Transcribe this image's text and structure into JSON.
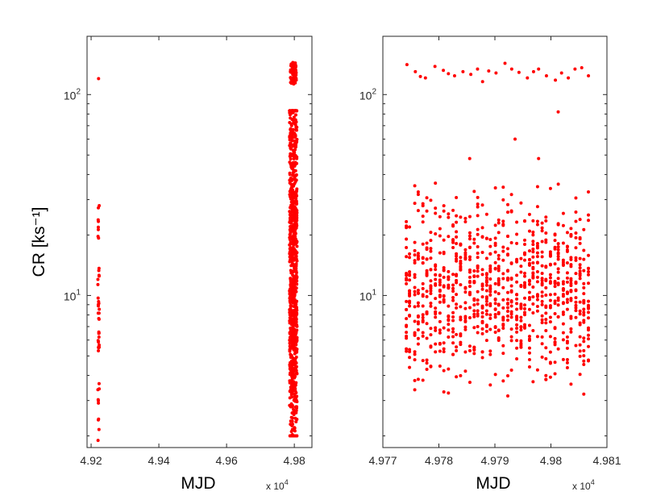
{
  "chart_data": [
    {
      "type": "scatter",
      "title": "",
      "xlabel": "MJD",
      "ylabel": "CR [ks⁻¹]",
      "x_multiplier_label": "x 10",
      "x_multiplier_exponent": "4",
      "xscale": "linear",
      "yscale": "log",
      "xlim": [
        4.9188,
        4.9852
      ],
      "ylim": [
        1.75,
        195
      ],
      "x_ticks": [
        4.92,
        4.94,
        4.96,
        4.98
      ],
      "x_tick_labels": [
        "4.92",
        "4.94",
        "4.96",
        "4.98"
      ],
      "y_tick_labels": [
        {
          "base": "10",
          "exp": "1"
        },
        {
          "base": "10",
          "exp": "2"
        }
      ],
      "color": "#ff0000",
      "marker": "filled-circle",
      "groups": [
        {
          "x_center": 4.9222,
          "x_jitter": 0.0002,
          "y_min": 1.9,
          "y_max": 28,
          "count": 45,
          "high_points": [
            120
          ]
        },
        {
          "x_center": 4.9797,
          "x_jitter": 0.0011,
          "y_min": 2.0,
          "y_max": 83,
          "count": 850,
          "high_points_range": [
            112,
            145
          ],
          "high_count": 60
        }
      ]
    },
    {
      "type": "scatter",
      "title": "",
      "xlabel": "MJD",
      "ylabel": "",
      "x_multiplier_label": "x 10",
      "x_multiplier_exponent": "4",
      "xscale": "linear",
      "yscale": "log",
      "xlim": [
        4.977,
        4.981
      ],
      "ylim": [
        1.75,
        195
      ],
      "x_ticks": [
        4.977,
        4.978,
        4.979,
        4.98,
        4.981
      ],
      "x_tick_labels": [
        "4.977",
        "4.978",
        "4.979",
        "4.98",
        "4.981"
      ],
      "y_tick_labels": [
        {
          "base": "10",
          "exp": "1"
        },
        {
          "base": "10",
          "exp": "2"
        }
      ],
      "color": "#ff0000",
      "marker": "filled-circle",
      "columns": {
        "x_start": 4.97741,
        "x_end": 4.98067,
        "count": 44,
        "points_per_column": 22,
        "y_min": 2.0,
        "y_max": 66
      },
      "high_points": [
        [
          4.97743,
          141
        ],
        [
          4.97758,
          130
        ],
        [
          4.97767,
          123
        ],
        [
          4.97776,
          121
        ],
        [
          4.97793,
          138
        ],
        [
          4.97808,
          132
        ],
        [
          4.97817,
          127
        ],
        [
          4.97828,
          124
        ],
        [
          4.97843,
          130
        ],
        [
          4.97857,
          126
        ],
        [
          4.97869,
          134
        ],
        [
          4.97878,
          116
        ],
        [
          4.97889,
          131
        ],
        [
          4.97902,
          128
        ],
        [
          4.97918,
          143
        ],
        [
          4.9793,
          134
        ],
        [
          4.97943,
          129
        ],
        [
          4.97958,
          121
        ],
        [
          4.97969,
          130
        ],
        [
          4.97978,
          134
        ],
        [
          4.97992,
          124
        ],
        [
          4.98008,
          118
        ],
        [
          4.98019,
          128
        ],
        [
          4.98031,
          121
        ],
        [
          4.98043,
          134
        ],
        [
          4.98055,
          136
        ],
        [
          4.98067,
          124
        ]
      ],
      "outliers": [
        [
          4.98013,
          82
        ],
        [
          4.97855,
          48
        ],
        [
          4.97978,
          48
        ],
        [
          4.97936,
          60
        ]
      ]
    }
  ]
}
